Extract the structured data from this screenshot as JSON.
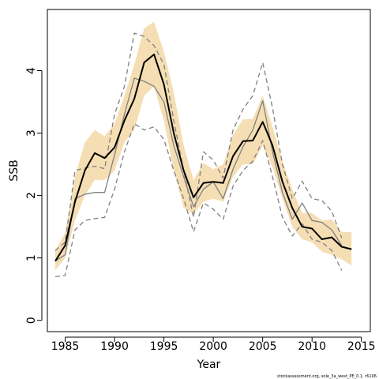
{
  "chart_data": {
    "type": "line",
    "xlabel": "Year",
    "ylabel": "SSB",
    "xlim": [
      1983.2,
      2015.9
    ],
    "ylim": [
      -0.18,
      4.98
    ],
    "x_ticks": [
      1985,
      1990,
      1995,
      2000,
      2005,
      2010,
      2015
    ],
    "y_ticks": [
      0,
      1,
      2,
      3,
      4
    ],
    "footnote": "stockassessment.org, sole_3a_west_PE_0.1, r6106",
    "colors": {
      "band": "#f5deb3",
      "estimate": "#000000",
      "retro": "#808080",
      "dashed": "#808080"
    },
    "band": {
      "x": [
        1984,
        1985,
        1986,
        1987,
        1988,
        1989,
        1990,
        1991,
        1992,
        1993,
        1994,
        1995,
        1996,
        1997,
        1998,
        1999,
        2000,
        2001,
        2002,
        2003,
        2004,
        2005,
        2006,
        2007,
        2008,
        2009,
        2010,
        2011,
        2012,
        2013,
        2014
      ],
      "upper": [
        1.12,
        1.4,
        2.3,
        2.85,
        3.05,
        2.95,
        3.15,
        3.6,
        4.1,
        4.68,
        4.78,
        4.3,
        3.65,
        2.8,
        2.25,
        2.52,
        2.42,
        2.5,
        2.97,
        3.22,
        3.23,
        3.6,
        3.1,
        2.55,
        2.1,
        1.72,
        1.72,
        1.6,
        1.62,
        1.42,
        1.41
      ],
      "lower": [
        0.8,
        1.0,
        1.6,
        2.0,
        2.25,
        2.25,
        2.4,
        2.85,
        3.05,
        3.6,
        3.75,
        3.2,
        2.4,
        1.8,
        1.7,
        1.9,
        1.95,
        1.9,
        2.3,
        2.5,
        2.5,
        2.8,
        2.45,
        1.95,
        1.5,
        1.3,
        1.25,
        1.1,
        1.05,
        0.98,
        0.88
      ]
    },
    "series": [
      {
        "role": "estimate",
        "x": [
          1984,
          1985,
          1986,
          1987,
          1988,
          1989,
          1990,
          1991,
          1992,
          1993,
          1994,
          1995,
          1996,
          1997,
          1998,
          1999,
          2000,
          2001,
          2002,
          2003,
          2004,
          2005,
          2006,
          2007,
          2008,
          2009,
          2010,
          2011,
          2012,
          2013,
          2014
        ],
        "y": [
          0.95,
          1.2,
          1.9,
          2.4,
          2.68,
          2.6,
          2.77,
          3.2,
          3.55,
          4.13,
          4.26,
          3.78,
          3.0,
          2.4,
          1.97,
          2.2,
          2.22,
          2.2,
          2.63,
          2.87,
          2.88,
          3.18,
          2.8,
          2.22,
          1.8,
          1.5,
          1.47,
          1.3,
          1.33,
          1.18,
          1.14
        ]
      },
      {
        "role": "retro",
        "x": [
          1984,
          1985,
          1986,
          1987,
          1988,
          1989,
          1990,
          1991,
          1992,
          1993,
          1994,
          1995,
          1996,
          1997,
          1998,
          1999,
          2000,
          2001,
          2002,
          2003,
          2004,
          2005,
          2006,
          2007,
          2008,
          2009,
          2010,
          2011,
          2012,
          2013
        ],
        "y": [
          0.95,
          1.05,
          1.95,
          2.02,
          2.05,
          2.05,
          2.65,
          3.3,
          3.88,
          3.83,
          3.75,
          3.5,
          2.8,
          2.3,
          1.82,
          2.1,
          2.22,
          1.95,
          2.42,
          2.78,
          3.05,
          3.52,
          2.7,
          2.05,
          1.62,
          1.88,
          1.6,
          1.57,
          1.45,
          1.2
        ]
      },
      {
        "role": "upper-dashed",
        "x": [
          1984,
          1985,
          1986,
          1987,
          1988,
          1989,
          1990,
          1991,
          1992,
          1993,
          1994,
          1995,
          1996,
          1997,
          1998,
          1999,
          2000,
          2001,
          2002,
          2003,
          2004,
          2005,
          2006,
          2007,
          2008,
          2009,
          2010,
          2011,
          2012,
          2013
        ],
        "y": [
          1.12,
          1.25,
          2.4,
          2.44,
          2.47,
          2.43,
          3.3,
          3.75,
          4.6,
          4.55,
          4.4,
          4.1,
          3.2,
          2.4,
          1.65,
          2.7,
          2.57,
          2.28,
          3.05,
          3.38,
          3.6,
          4.13,
          3.4,
          2.5,
          1.95,
          2.23,
          1.95,
          1.92,
          1.75,
          1.32
        ]
      },
      {
        "role": "lower-dashed",
        "x": [
          1984,
          1985,
          1986,
          1987,
          1988,
          1989,
          1990,
          1991,
          1992,
          1993,
          1994,
          1995,
          1996,
          1997,
          1998,
          1999,
          2000,
          2001,
          2002,
          2003,
          2004,
          2005,
          2006,
          2007,
          2008,
          2009,
          2010,
          2011,
          2012,
          2013
        ],
        "y": [
          0.7,
          0.72,
          1.45,
          1.6,
          1.63,
          1.65,
          2.1,
          2.7,
          3.15,
          3.05,
          3.1,
          2.9,
          2.4,
          1.95,
          1.42,
          1.88,
          1.78,
          1.62,
          2.15,
          2.4,
          2.55,
          2.88,
          2.3,
          1.65,
          1.35,
          1.55,
          1.3,
          1.25,
          1.12,
          0.8
        ]
      }
    ]
  }
}
